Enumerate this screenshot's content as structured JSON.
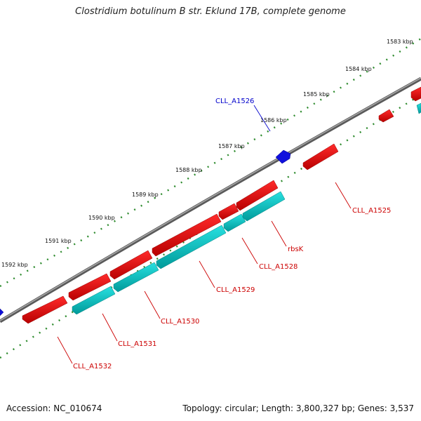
{
  "title": "Clostridium botulinum B str. Eklund 17B, complete genome",
  "footer": {
    "accession": "Accession: NC_010674",
    "stats": "Topology: circular; Length: 3,800,327 bp; Genes: 3,537"
  },
  "colors": {
    "backbone": "#808080",
    "scale_ticks": "#2e8b2e",
    "forward_cds": "#ee0000",
    "reverse_cds": "#00c8c8",
    "other_gene": "#0000ee",
    "cds_label": "#cc0000",
    "other_label": "#0000cc"
  },
  "scale_labels": [
    "1583 kbp",
    "1584 kbp",
    "1585 kbp",
    "1586 kbp",
    "1587 kbp",
    "1588 kbp",
    "1589 kbp",
    "1590 kbp",
    "1591 kbp",
    "1592 kbp"
  ],
  "gene_labels": [
    {
      "text": "CLL_A1526",
      "type": "other"
    },
    {
      "text": "CLL_A1525",
      "type": "cds"
    },
    {
      "text": "rbsK",
      "type": "cds"
    },
    {
      "text": "CLL_A1528",
      "type": "cds"
    },
    {
      "text": "CLL_A1529",
      "type": "cds"
    },
    {
      "text": "CLL_A1530",
      "type": "cds"
    },
    {
      "text": "CLL_A1531",
      "type": "cds"
    },
    {
      "text": "CLL_A1532",
      "type": "cds"
    }
  ]
}
